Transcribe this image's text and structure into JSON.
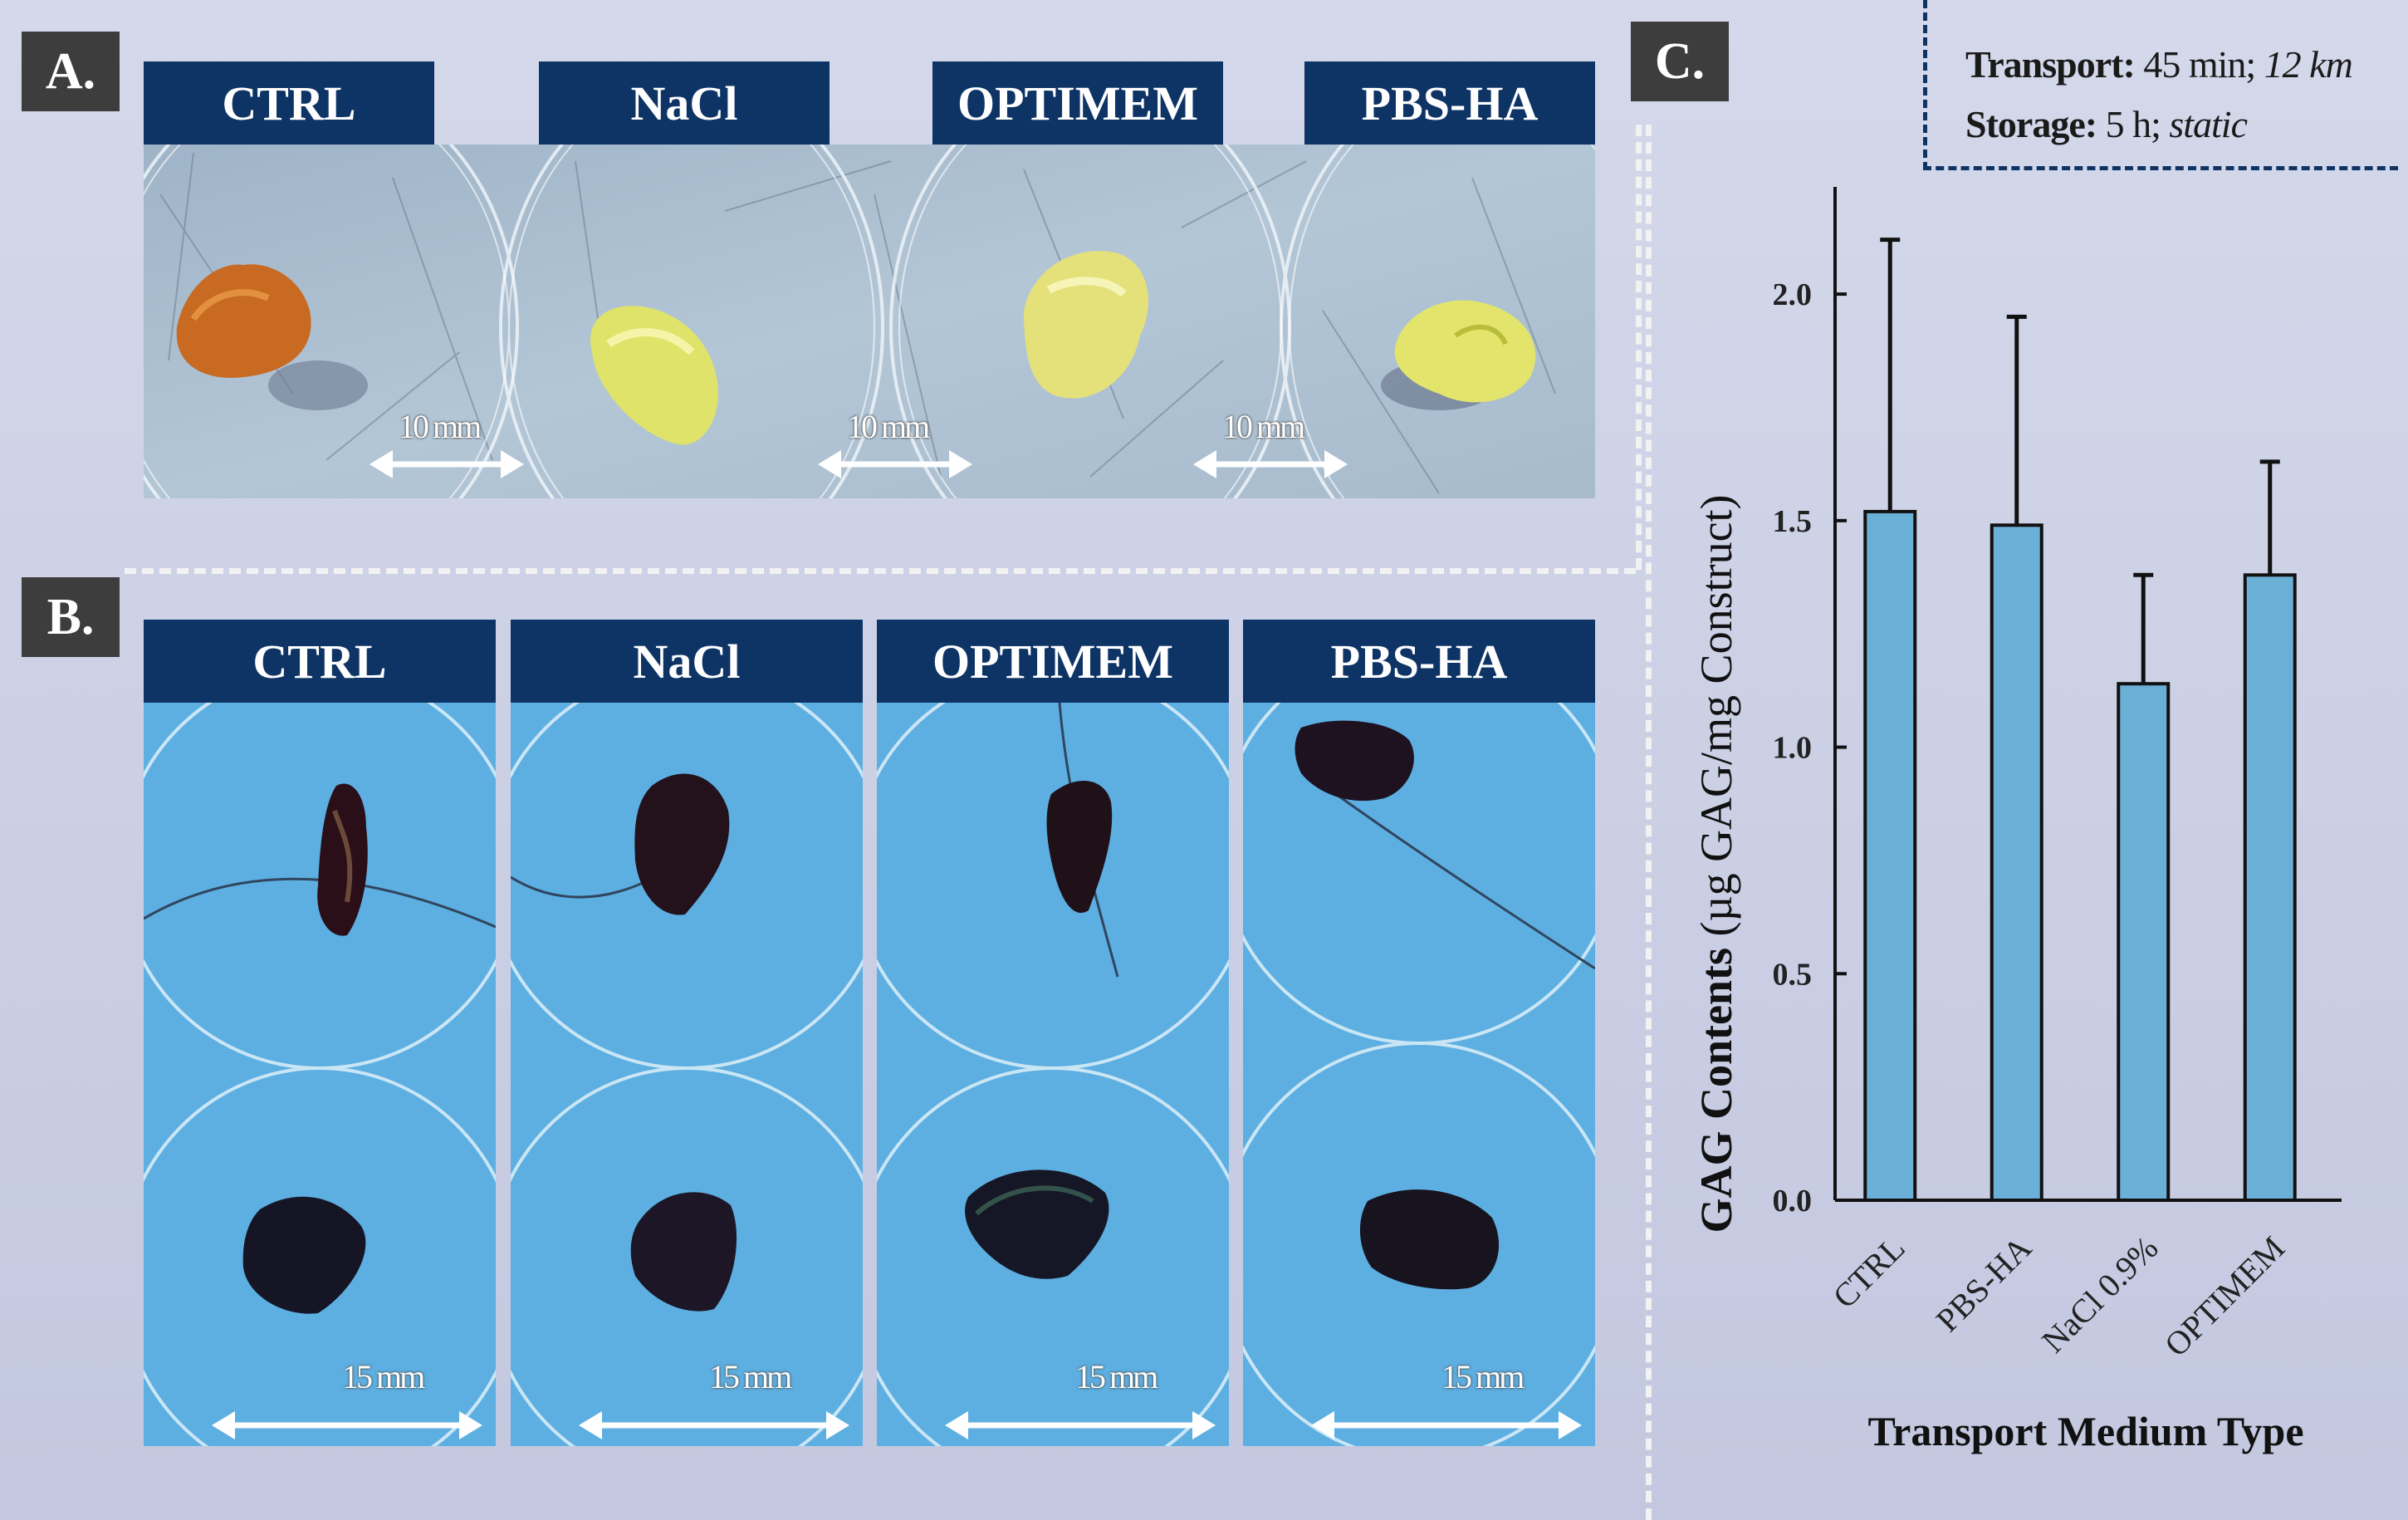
{
  "panels": {
    "a": {
      "letter": "A.",
      "headers": [
        "CTRL",
        "NaCl",
        "OPTIMEM",
        "PBS-HA"
      ],
      "scale_labels": [
        "10 mm",
        "10 mm",
        "10 mm"
      ]
    },
    "b": {
      "letter": "B.",
      "headers": [
        "CTRL",
        "NaCl",
        "OPTIMEM",
        "PBS-HA"
      ],
      "scale_labels": [
        "15 mm",
        "15 mm",
        "15 mm",
        "15 mm"
      ]
    },
    "c": {
      "letter": "C."
    }
  },
  "conditions": {
    "transport_label": "Transport:",
    "transport_time": "45 min;",
    "transport_distance": "12 km",
    "storage_label": "Storage:",
    "storage_time": "5 h;",
    "storage_mode": "static"
  },
  "colors": {
    "header_bg": "#0e3466",
    "bar_fill": "#6aafd6",
    "accent_dash": "#0e3466"
  },
  "chart_data": {
    "type": "bar",
    "categories": [
      "CTRL",
      "PBS-HA",
      "NaCl 0.9%",
      "OPTIMEM"
    ],
    "values": [
      1.52,
      1.49,
      1.14,
      1.38
    ],
    "errors": [
      0.6,
      0.46,
      0.24,
      0.25
    ],
    "ylim": [
      0,
      2.2
    ],
    "yticks": [
      0.0,
      0.5,
      1.0,
      1.5,
      2.0
    ],
    "ytick_labels": [
      "0.0",
      "0.5",
      "1.0",
      "1.5",
      "2.0"
    ],
    "ylabel_bold": "GAG Contents",
    "ylabel_rest": " (µg GAG/mg Construct)",
    "xlabel": "Transport Medium Type",
    "grid": false
  }
}
